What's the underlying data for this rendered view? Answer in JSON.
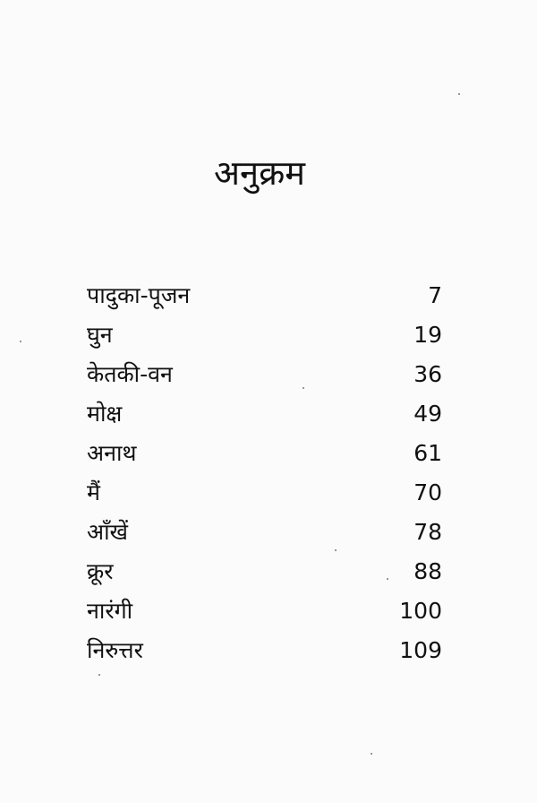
{
  "title": "अनुक्रम",
  "entries": [
    {
      "label": "पादुका-पूजन",
      "page": "7"
    },
    {
      "label": "घुन",
      "page": "19"
    },
    {
      "label": "केतकी-वन",
      "page": "36"
    },
    {
      "label": "मोक्ष",
      "page": "49"
    },
    {
      "label": "अनाथ",
      "page": "61"
    },
    {
      "label": "मैं",
      "page": "70"
    },
    {
      "label": "आँखें",
      "page": "78"
    },
    {
      "label": "क्रूर",
      "page": "88"
    },
    {
      "label": "नारंगी",
      "page": "100"
    },
    {
      "label": "निरुत्तर",
      "page": "109"
    }
  ]
}
